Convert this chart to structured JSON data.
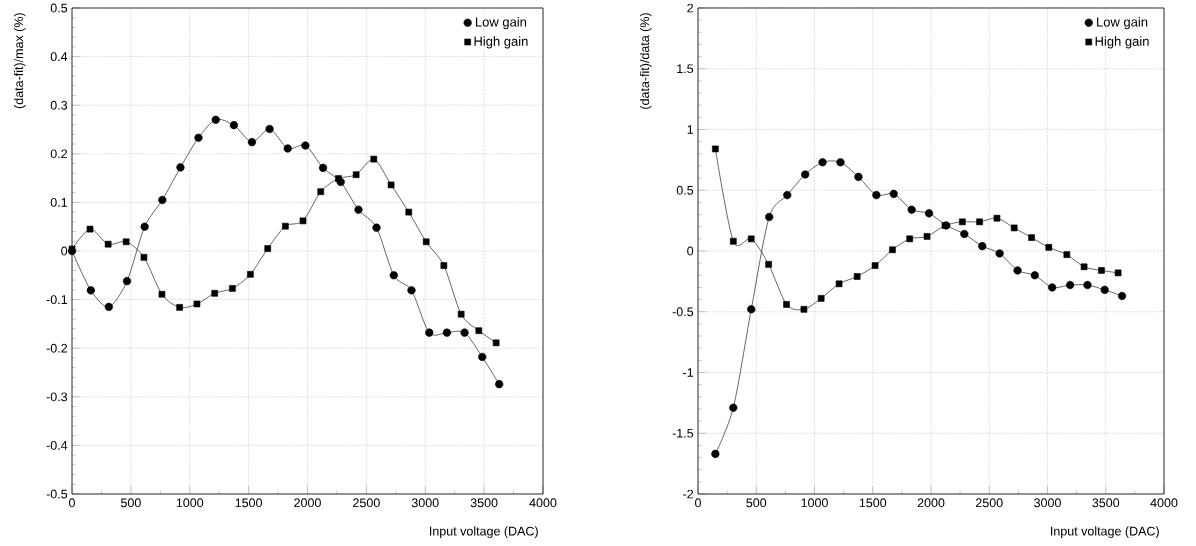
{
  "chart_data": [
    {
      "type": "line",
      "xlabel": "Input voltage (DAC)",
      "ylabel": "(data-fit)/max (%)",
      "xlim": [
        0,
        4000
      ],
      "ylim": [
        -0.5,
        0.5
      ],
      "xticks": [
        0,
        500,
        1000,
        1500,
        2000,
        2500,
        3000,
        3500,
        4000
      ],
      "yticks": [
        -0.5,
        -0.4,
        -0.3,
        -0.2,
        -0.1,
        0,
        0.1,
        0.2,
        0.3,
        0.4,
        0.5
      ],
      "grid": true,
      "legend": "top right",
      "line_style": "solid",
      "series": [
        {
          "name": "Low gain",
          "color": "#000000",
          "marker": "circle",
          "x": [
            0,
            160,
            313,
            467,
            617,
            767,
            921,
            1074,
            1221,
            1375,
            1528,
            1678,
            1832,
            1982,
            2132,
            2282,
            2433,
            2586,
            2733,
            2883,
            3034,
            3184,
            3334,
            3484,
            3628
          ],
          "values": [
            0,
            -0.081,
            -0.115,
            -0.062,
            0.05,
            0.105,
            0.172,
            0.233,
            0.27,
            0.259,
            0.224,
            0.251,
            0.211,
            0.217,
            0.171,
            0.142,
            0.085,
            0.048,
            -0.05,
            -0.081,
            -0.168,
            -0.168,
            -0.168,
            -0.218,
            -0.274
          ]
        },
        {
          "name": "High gain",
          "color": "#000000",
          "marker": "square",
          "x": [
            0,
            153,
            307,
            460,
            611,
            764,
            914,
            1061,
            1212,
            1362,
            1515,
            1662,
            1812,
            1962,
            2112,
            2263,
            2413,
            2563,
            2710,
            2860,
            3008,
            3158,
            3305,
            3455,
            3602
          ],
          "values": [
            0.004,
            0.045,
            0.014,
            0.019,
            -0.013,
            -0.089,
            -0.116,
            -0.109,
            -0.087,
            -0.077,
            -0.048,
            0.005,
            0.051,
            0.062,
            0.122,
            0.149,
            0.157,
            0.189,
            0.136,
            0.08,
            0.019,
            -0.03,
            -0.13,
            -0.164,
            -0.189
          ]
        }
      ]
    },
    {
      "type": "line",
      "xlabel": "Input voltage (DAC)",
      "ylabel": "(data-fit)/data (%)",
      "xlim": [
        0,
        4000
      ],
      "ylim": [
        -2,
        2
      ],
      "xticks": [
        0,
        500,
        1000,
        1500,
        2000,
        2500,
        3000,
        3500,
        4000
      ],
      "yticks": [
        -2,
        -1.5,
        -1,
        -0.5,
        0,
        0.5,
        1,
        1.5,
        2
      ],
      "grid": true,
      "legend": "top right",
      "line_style": "solid",
      "series": [
        {
          "name": "Low gain",
          "color": "#000000",
          "marker": "circle",
          "x": [
            149,
            303,
            457,
            611,
            766,
            920,
            1069,
            1223,
            1377,
            1531,
            1680,
            1834,
            1983,
            2131,
            2286,
            2440,
            2589,
            2743,
            2891,
            3040,
            3194,
            3343,
            3491,
            3640
          ],
          "values": [
            -1.67,
            -1.29,
            -0.48,
            0.28,
            0.46,
            0.63,
            0.73,
            0.73,
            0.61,
            0.46,
            0.47,
            0.34,
            0.31,
            0.21,
            0.14,
            0.04,
            -0.02,
            -0.16,
            -0.2,
            -0.3,
            -0.28,
            -0.28,
            -0.32,
            -0.37
          ]
        },
        {
          "name": "High gain",
          "color": "#000000",
          "marker": "square",
          "x": [
            149,
            303,
            457,
            606,
            760,
            909,
            1057,
            1211,
            1366,
            1520,
            1669,
            1817,
            1966,
            2120,
            2269,
            2417,
            2566,
            2714,
            2863,
            3011,
            3166,
            3314,
            3463,
            3606
          ],
          "values": [
            0.84,
            0.08,
            0.1,
            -0.11,
            -0.44,
            -0.48,
            -0.39,
            -0.27,
            -0.21,
            -0.12,
            0.01,
            0.1,
            0.12,
            0.21,
            0.24,
            0.24,
            0.27,
            0.19,
            0.11,
            0.03,
            -0.03,
            -0.13,
            -0.16,
            -0.18
          ]
        }
      ]
    }
  ]
}
